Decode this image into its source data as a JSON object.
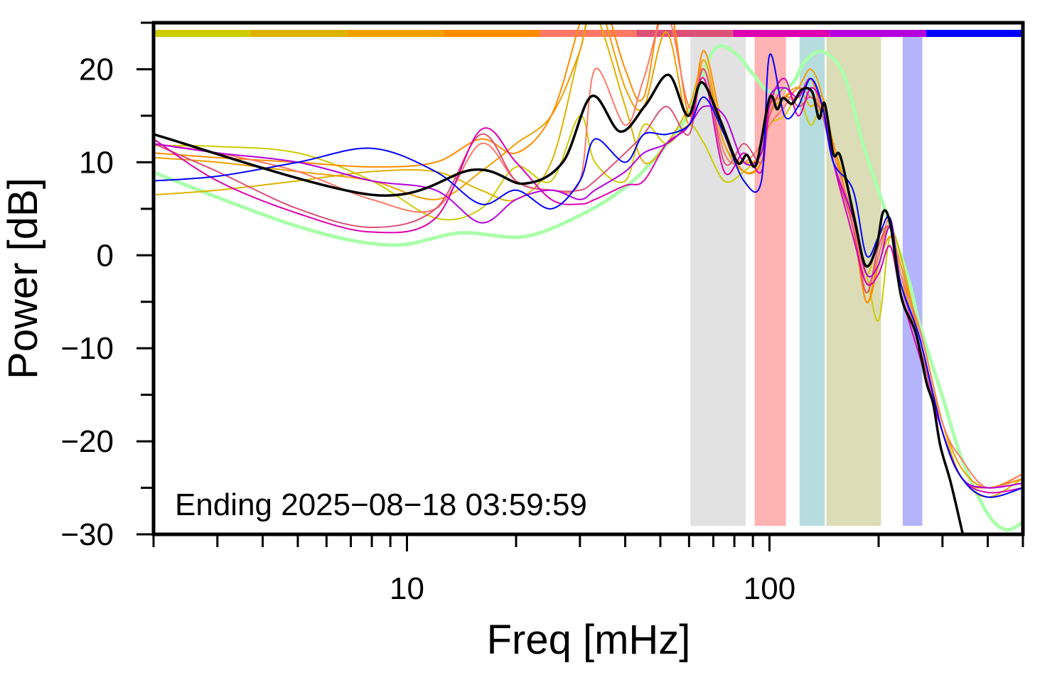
{
  "chart_data": {
    "type": "line",
    "xlabel": "Freq [mHz]",
    "ylabel": "Power [dB]",
    "xscale": "log",
    "xlim": [
      2,
      500
    ],
    "ylim": [
      -30,
      25
    ],
    "xticks_labeled": [
      10,
      100
    ],
    "yticks": [
      -30,
      -20,
      -10,
      0,
      10,
      20
    ],
    "grid": false,
    "annotation": "Ending 2025−08−18 03:59:59",
    "color_bar": [
      "#cccc00",
      "#ddb300",
      "#f0a000",
      "#ff8c00",
      "#ff7866",
      "#dd5078",
      "#dd00b0",
      "#b400dd",
      "#0000ff"
    ],
    "bands": [
      {
        "from": 60.5,
        "to": 86,
        "color": "#e2e2e2"
      },
      {
        "from": 91,
        "to": 111,
        "color": "#ffb3b3"
      },
      {
        "from": 121,
        "to": 142,
        "color": "#b6dcdf"
      },
      {
        "from": 143.5,
        "to": 203,
        "color": "#dcdcb6"
      },
      {
        "from": 233,
        "to": 264,
        "color": "#b4b4fa"
      }
    ],
    "x": [
      2,
      3,
      5,
      8,
      12,
      16,
      20,
      25,
      30,
      33,
      40,
      45,
      52,
      60,
      66,
      75,
      85,
      95,
      100,
      110,
      120,
      130,
      140,
      150,
      170,
      185,
      200,
      215,
      230,
      260,
      300,
      340,
      400,
      500
    ],
    "series": [
      {
        "color": "#cccc00",
        "values": [
          11.8,
          11.7,
          11,
          8,
          4,
          5,
          9.5,
          8,
          15,
          10,
          8,
          14,
          12,
          14,
          12,
          8,
          9,
          11,
          14,
          15,
          17,
          14,
          16,
          12,
          3,
          -2,
          -7,
          2,
          -3,
          -8,
          -18,
          -24,
          -25,
          -24
        ]
      },
      {
        "color": "#ddb300",
        "values": [
          6.5,
          7,
          8,
          9,
          9,
          7,
          6,
          10,
          22,
          26,
          16,
          10,
          12,
          16,
          20,
          12,
          9,
          10,
          15,
          17,
          18,
          16,
          17,
          12,
          5,
          -2,
          2,
          3,
          0,
          -9,
          -19,
          -24,
          -26,
          -24
        ]
      },
      {
        "color": "#f0a000",
        "values": [
          10.5,
          10,
          9,
          8,
          6,
          9,
          12,
          15,
          22,
          28,
          18,
          16,
          24,
          14,
          21,
          12,
          10,
          11,
          16,
          17,
          18,
          20,
          17,
          10,
          4,
          -5,
          0,
          3,
          -2,
          -10,
          -18,
          -23,
          -25,
          -23.5
        ]
      },
      {
        "color": "#ff8c00",
        "values": [
          11,
          10.5,
          10,
          9.5,
          10,
          12.5,
          11,
          15,
          25,
          30,
          20,
          17,
          28,
          15,
          22,
          13,
          9,
          10,
          16,
          17,
          17,
          19,
          15,
          12,
          3,
          -5,
          -1,
          2,
          -1,
          -9,
          -19,
          -24,
          -25,
          -24
        ]
      },
      {
        "color": "#ff7866",
        "values": [
          12,
          11,
          9,
          6,
          5,
          12,
          8,
          7,
          8,
          20,
          14,
          19,
          26,
          16,
          20,
          11,
          10,
          12,
          14,
          16,
          18,
          17,
          16,
          11,
          4,
          -3,
          0,
          4,
          -2,
          -8,
          -18,
          -22,
          -25,
          -23.5
        ]
      },
      {
        "color": "#dd5078",
        "values": [
          12,
          9,
          5,
          3,
          5,
          13,
          8,
          7,
          7,
          8,
          11,
          13,
          16,
          13,
          20,
          10,
          12,
          10,
          15,
          18,
          16,
          17,
          15,
          10,
          3,
          -4,
          1,
          3,
          -3,
          -10,
          -19,
          -24,
          -25,
          -24.5
        ]
      },
      {
        "color": "#dd00b0",
        "values": [
          12.5,
          8,
          4.5,
          2.5,
          4,
          13.5,
          10,
          6,
          5.5,
          6,
          7.5,
          8,
          12,
          14,
          19,
          9,
          11,
          9,
          16,
          19,
          15,
          18,
          16,
          10,
          2,
          -3,
          -2,
          1,
          -4,
          -11,
          -19,
          -24,
          -25.5,
          -25
        ]
      },
      {
        "color": "#b400dd",
        "values": [
          12,
          11,
          10,
          8,
          7,
          3.5,
          6,
          7,
          6,
          7,
          9,
          11,
          12,
          14,
          16,
          15,
          10,
          11,
          17,
          18,
          17,
          19,
          16,
          10,
          4,
          -2,
          -1,
          3,
          -3,
          -9,
          -19,
          -24,
          -25,
          -24.5
        ]
      },
      {
        "color": "#0000ff",
        "values": [
          8,
          8.5,
          10,
          11.5,
          9,
          5.5,
          7,
          5,
          8,
          12.5,
          10,
          13,
          13,
          14,
          17,
          13,
          8,
          8,
          21.5,
          15,
          16,
          19,
          16,
          10,
          7,
          0,
          2,
          4,
          -3,
          -9,
          -19,
          -24,
          -26,
          -25
        ]
      }
    ],
    "reference": {
      "color": "#aaffaa",
      "x": [
        2,
        5,
        9,
        14,
        21,
        30,
        40,
        50,
        60,
        70,
        80,
        90,
        100,
        115,
        125,
        140,
        160,
        180,
        200,
        240,
        260,
        300,
        340,
        400,
        450,
        500
      ],
      "values": [
        8.9,
        3.1,
        1.1,
        2.4,
        2.0,
        4.3,
        7.3,
        11.1,
        15.3,
        22,
        21.8,
        19.5,
        17.6,
        18.4,
        20.8,
        21.9,
        19.5,
        12.3,
        6.9,
        -2.2,
        -7.6,
        -15.2,
        -22,
        -27.8,
        -29.5,
        -28.7
      ]
    },
    "mean": {
      "color": "#000000",
      "x": [
        2,
        8,
        15.3,
        21,
        26.9,
        32.3,
        38.7,
        45.4,
        52.7,
        59.5,
        65,
        73,
        81.5,
        86.5,
        92,
        100,
        105,
        109,
        115.5,
        122.6,
        131,
        137,
        142,
        150,
        157,
        172,
        184,
        197,
        206,
        216,
        231,
        253,
        271,
        283,
        296,
        316,
        340,
        350
      ],
      "values": [
        13,
        6.5,
        9.2,
        7.7,
        10,
        17.1,
        13.3,
        16.1,
        19.4,
        15,
        18.6,
        14.6,
        10,
        10.8,
        9.8,
        16.9,
        15.7,
        16.9,
        16.3,
        17.8,
        17.6,
        14.7,
        16.3,
        10.9,
        10.6,
        3.7,
        -1.1,
        0.8,
        4.7,
        3.1,
        -4.5,
        -8.3,
        -13.7,
        -16,
        -20.5,
        -24.4,
        -29.7,
        -32
      ]
    }
  }
}
